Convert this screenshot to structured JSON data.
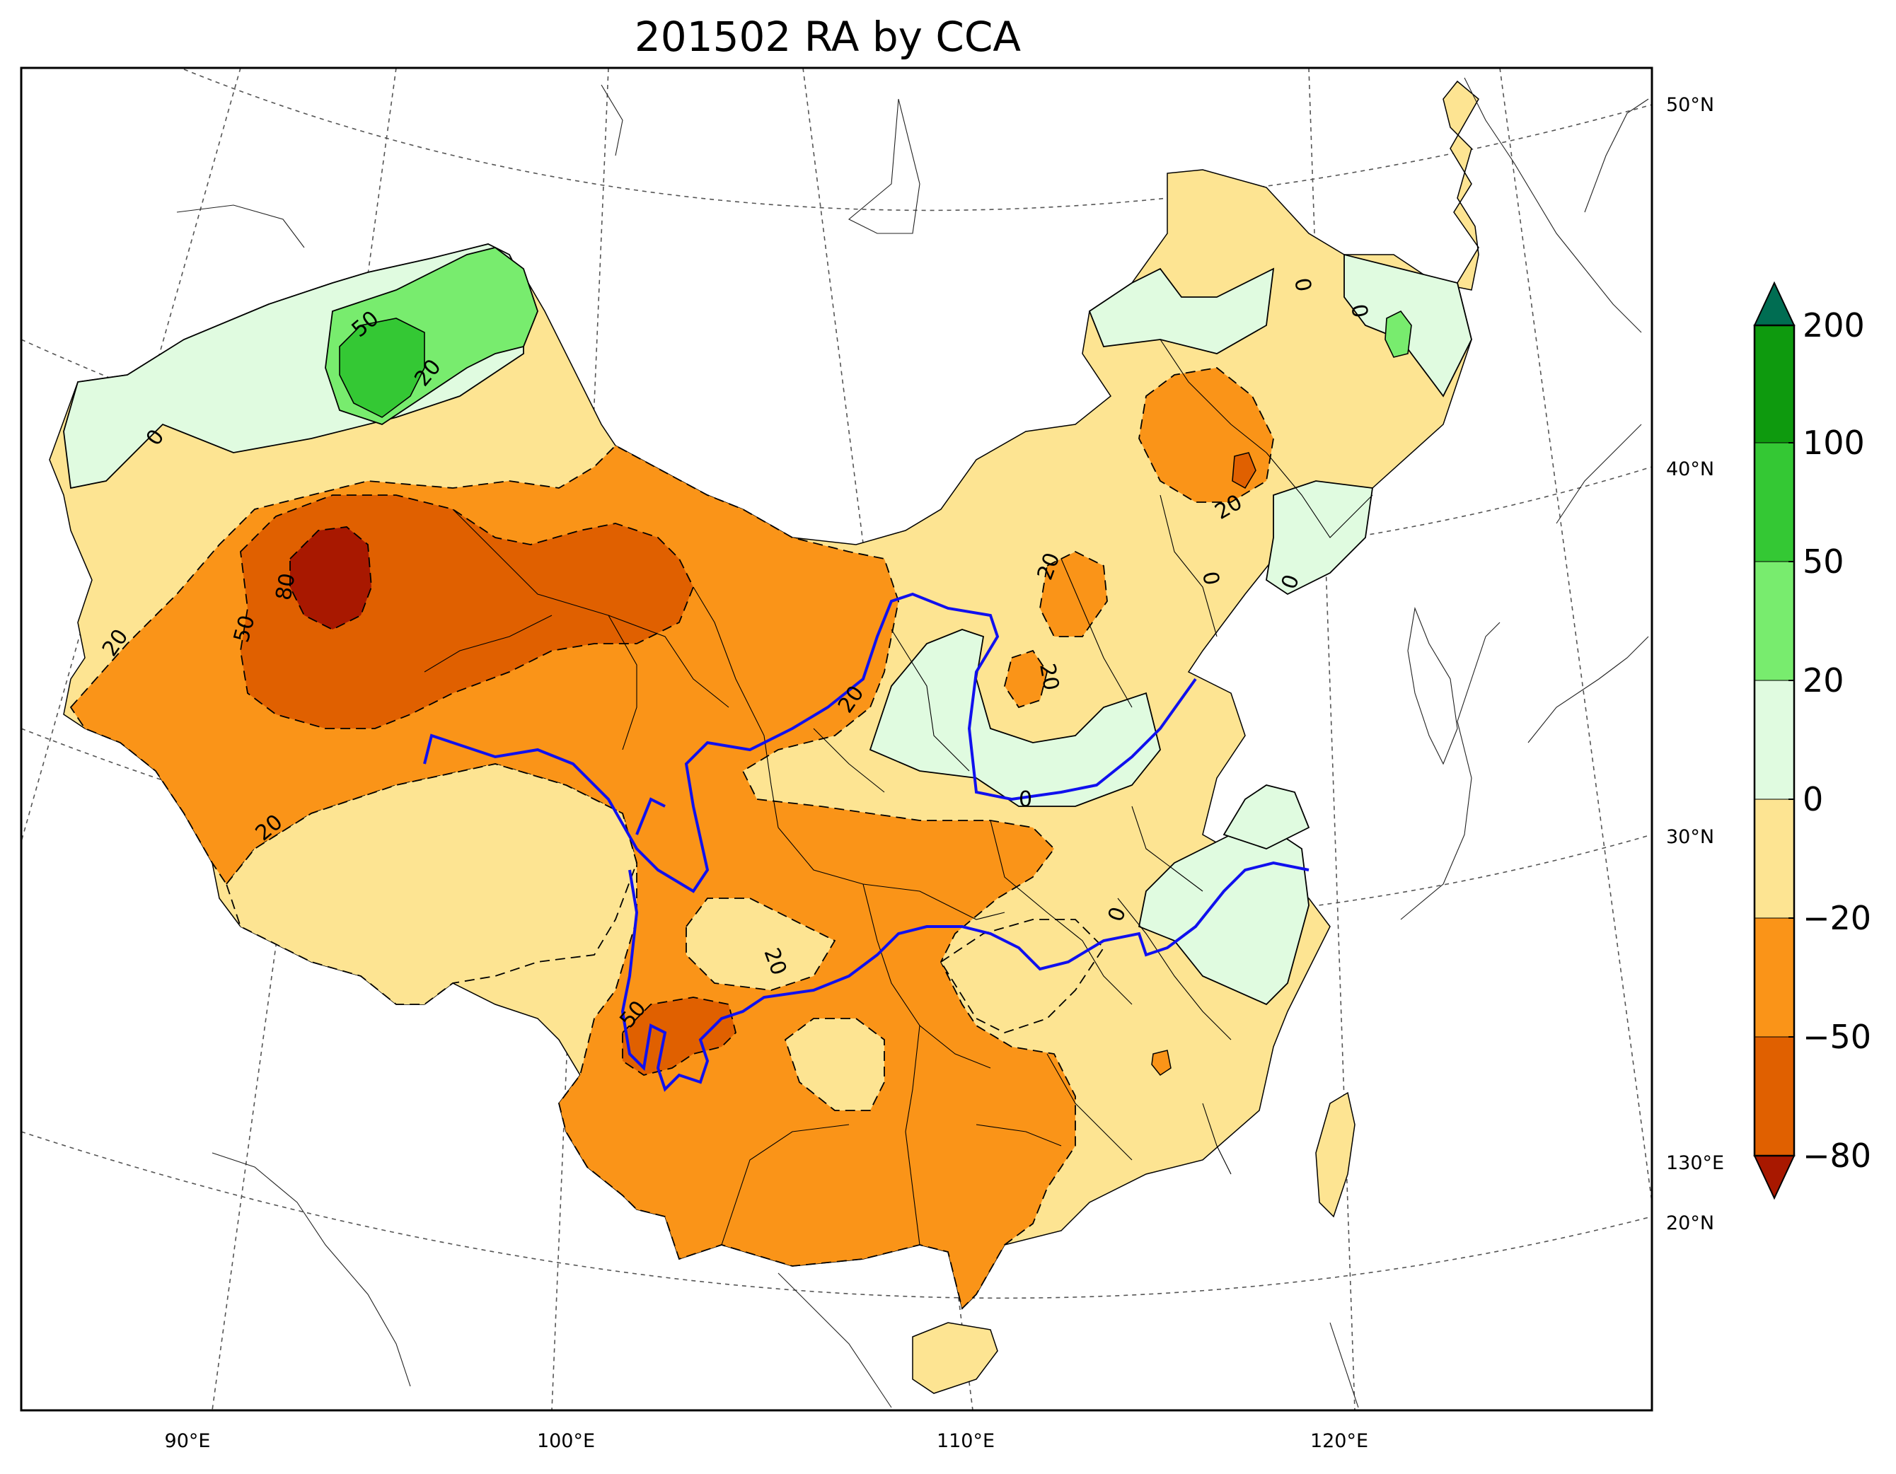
{
  "title": "201502 RA by CCA",
  "lon_labels": [
    "90°E",
    "100°E",
    "110°E",
    "120°E",
    "130°E"
  ],
  "lat_labels": [
    "50°N",
    "40°N",
    "30°N",
    "20°N"
  ],
  "contour_labels": [
    "50",
    "20",
    "0",
    "80",
    "50",
    "20",
    "20",
    "20",
    "50",
    "20",
    "0",
    "0",
    "20",
    "20",
    "20",
    "0",
    "0",
    "0",
    "0"
  ],
  "colorbar": {
    "ticks": [
      "200",
      "100",
      "50",
      "20",
      "0",
      "−20",
      "−50",
      "−80"
    ],
    "colors": {
      "gt200": "#006d52",
      "100_200": "#0e9a0e",
      "50_100": "#34c834",
      "20_50": "#78ec6e",
      "0_20": "#e0fbe0",
      "m20_0": "#fde492",
      "m50_m20": "#fa9418",
      "m80_m50": "#e06000",
      "lt_m80": "#a81800"
    }
  },
  "colors": {
    "river": "#1010ee",
    "boundary": "#000000"
  }
}
